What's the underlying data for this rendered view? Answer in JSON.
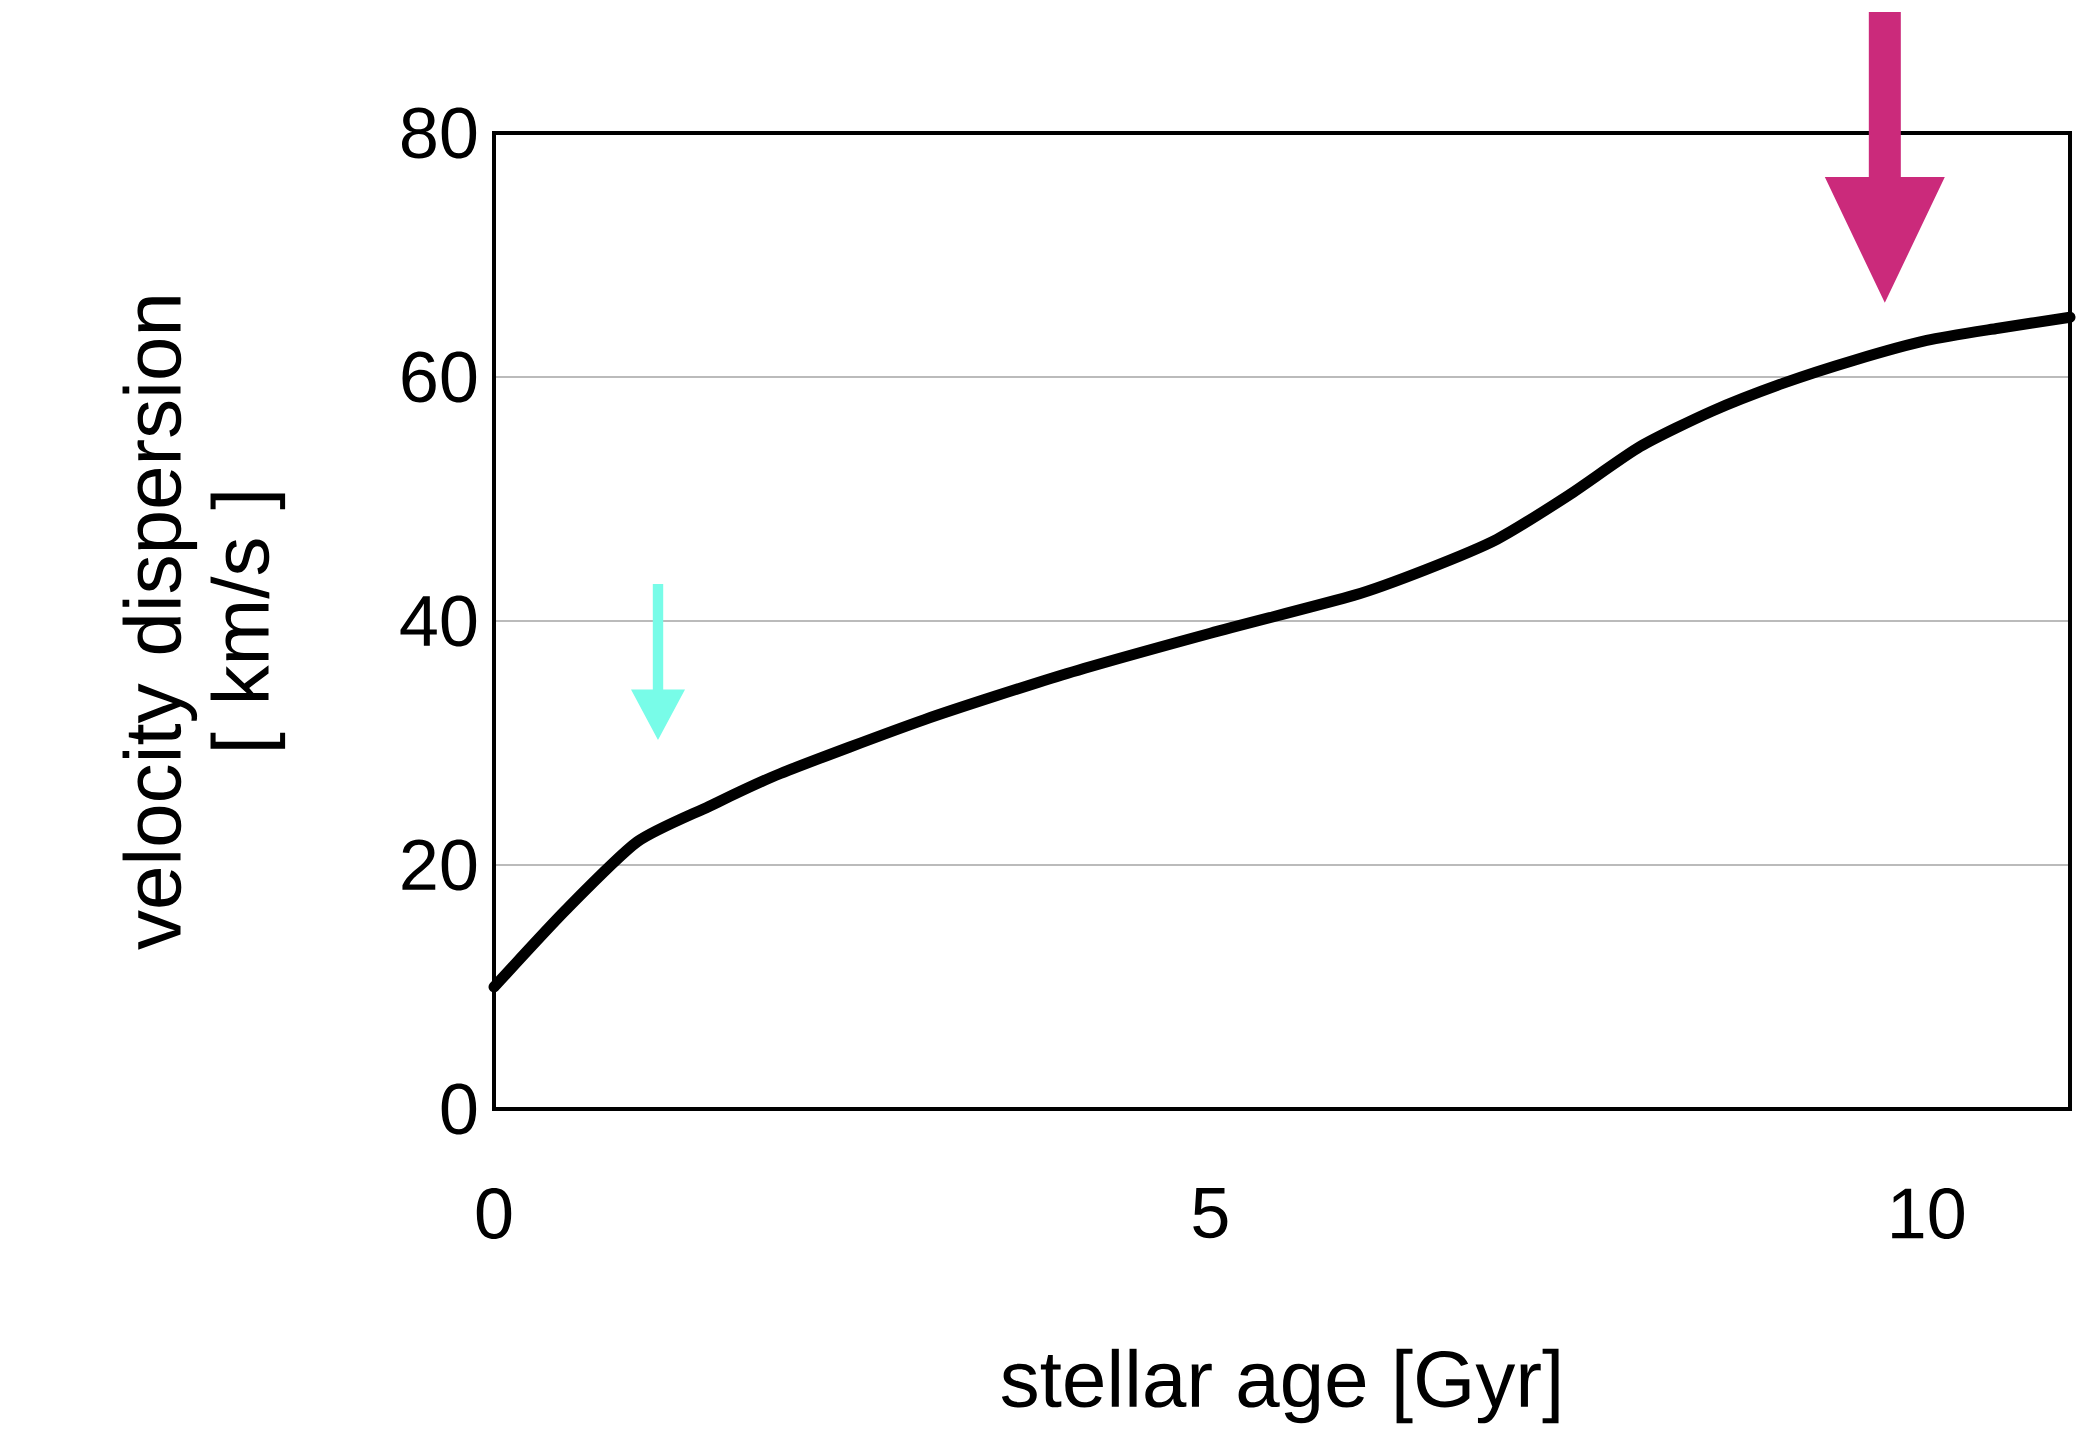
{
  "chart_data": {
    "type": "line",
    "xlabel": "stellar age [Gyr]",
    "ylabel": "velocity dispersion [ km/s ]",
    "x": [
      0,
      0.5,
      1,
      1.5,
      2,
      3,
      4,
      5,
      6,
      6.5,
      7,
      7.5,
      8,
      8.5,
      9,
      9.5,
      10,
      10.5,
      11
    ],
    "series": [
      {
        "color": "#000000",
        "values": [
          10,
          16.3,
          21.9,
          24.8,
          27.5,
          31.9,
          35.7,
          39.0,
          42.1,
          44.2,
          46.7,
          50.3,
          54.3,
          57.2,
          59.5,
          61.4,
          63.0,
          64.0,
          64.9
        ]
      }
    ],
    "xlim": [
      0,
      11
    ],
    "xticks": [
      0,
      5,
      10
    ],
    "ylim": [
      0,
      80
    ],
    "yticks": [
      0,
      20,
      40,
      60,
      80
    ],
    "grid": "y",
    "marker": "none",
    "line_style": "solid"
  }
}
